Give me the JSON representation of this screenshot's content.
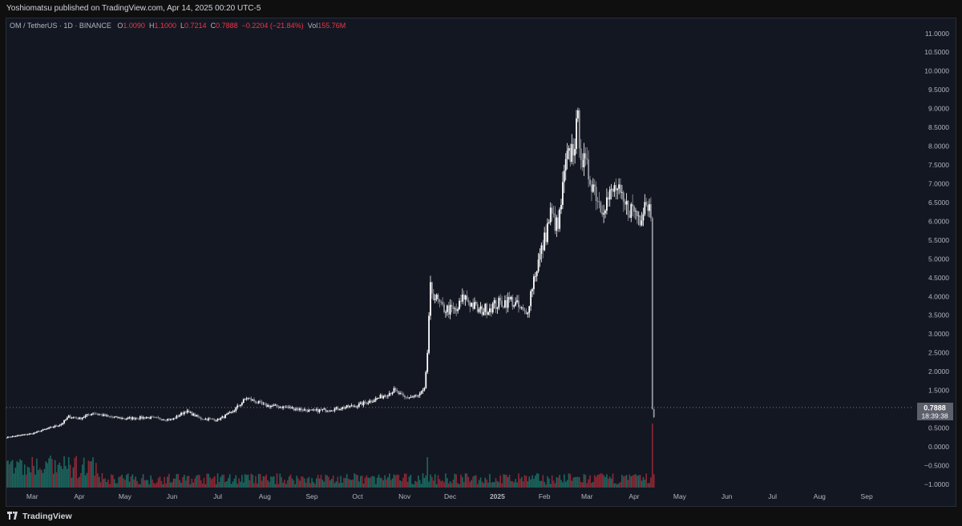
{
  "header": {
    "publish_line": "Yoshiomatsu published on TradingView.com, Apr 14, 2025 00:20 UTC-5"
  },
  "legend": {
    "symbol": "OM / TetherUS · 1D · BINANCE",
    "o_label": "O",
    "o_value": "1.0090",
    "h_label": "H",
    "h_value": "1.1000",
    "l_label": "L",
    "l_value": "0.7214",
    "c_label": "C",
    "c_value": "0.7888",
    "change": "−0.2204 (−21.84%)",
    "vol_label": "Vol",
    "vol_value": "155.76M"
  },
  "price_badge": {
    "price": "0.7888",
    "countdown": "18:39:38"
  },
  "footer": {
    "brand": "TradingView"
  },
  "colors": {
    "up": "#ffffff",
    "down": "#9598a1",
    "vol_up": "#22ab94",
    "vol_down": "#f23645",
    "bg": "#131722",
    "accent_red": "#f23645"
  },
  "chart_data": {
    "type": "candlestick",
    "symbol": "OM / TetherUS",
    "interval": "1D",
    "exchange": "BINANCE",
    "y_ticks": [
      "11.0000",
      "10.5000",
      "10.0000",
      "9.5000",
      "9.0000",
      "8.5000",
      "8.0000",
      "7.5000",
      "7.0000",
      "6.5000",
      "6.0000",
      "5.5000",
      "5.0000",
      "4.5000",
      "4.0000",
      "3.5000",
      "3.0000",
      "2.5000",
      "2.0000",
      "1.5000",
      "1.0000",
      "0.5000",
      "0.0000",
      "−0.5000",
      "−1.0000"
    ],
    "ylim": [
      -1.3,
      11.4
    ],
    "x_ticks": [
      "Mar",
      "Apr",
      "May",
      "Jun",
      "Jul",
      "Aug",
      "Sep",
      "Oct",
      "Nov",
      "Dec",
      "2025",
      "Feb",
      "Mar",
      "Apr",
      "May",
      "Jun",
      "Jul",
      "Aug",
      "Sep"
    ],
    "x_range": [
      "2024-02-13",
      "2025-10-01"
    ],
    "last_price": 0.7888,
    "approx_close_path": [
      [
        "2024-02-13",
        0.25
      ],
      [
        "2024-03-01",
        0.35
      ],
      [
        "2024-03-20",
        0.6
      ],
      [
        "2024-03-25",
        0.8
      ],
      [
        "2024-04-01",
        0.75
      ],
      [
        "2024-04-10",
        0.9
      ],
      [
        "2024-04-20",
        0.8
      ],
      [
        "2024-05-01",
        0.75
      ],
      [
        "2024-05-15",
        0.78
      ],
      [
        "2024-06-01",
        0.72
      ],
      [
        "2024-06-10",
        0.95
      ],
      [
        "2024-06-20",
        0.75
      ],
      [
        "2024-07-01",
        0.72
      ],
      [
        "2024-07-10",
        0.9
      ],
      [
        "2024-07-20",
        1.3
      ],
      [
        "2024-08-01",
        1.1
      ],
      [
        "2024-08-15",
        1.05
      ],
      [
        "2024-09-01",
        0.95
      ],
      [
        "2024-09-15",
        1.0
      ],
      [
        "2024-10-01",
        1.1
      ],
      [
        "2024-10-15",
        1.3
      ],
      [
        "2024-10-25",
        1.5
      ],
      [
        "2024-11-01",
        1.3
      ],
      [
        "2024-11-10",
        1.35
      ],
      [
        "2024-11-14",
        1.5
      ],
      [
        "2024-11-16",
        2.5
      ],
      [
        "2024-11-18",
        4.2
      ],
      [
        "2024-11-25",
        3.7
      ],
      [
        "2024-12-05",
        3.6
      ],
      [
        "2024-12-10",
        4.0
      ],
      [
        "2024-12-20",
        3.6
      ],
      [
        "2025-01-01",
        3.8
      ],
      [
        "2025-01-10",
        3.9
      ],
      [
        "2025-01-20",
        3.5
      ],
      [
        "2025-01-25",
        4.5
      ],
      [
        "2025-02-01",
        5.5
      ],
      [
        "2025-02-05",
        6.2
      ],
      [
        "2025-02-10",
        5.8
      ],
      [
        "2025-02-15",
        7.5
      ],
      [
        "2025-02-20",
        8.0
      ],
      [
        "2025-02-23",
        8.6
      ],
      [
        "2025-02-26",
        7.6
      ],
      [
        "2025-03-05",
        7.0
      ],
      [
        "2025-03-10",
        6.4
      ],
      [
        "2025-03-15",
        6.6
      ],
      [
        "2025-03-20",
        6.9
      ],
      [
        "2025-03-25",
        6.4
      ],
      [
        "2025-04-01",
        6.3
      ],
      [
        "2025-04-05",
        6.1
      ],
      [
        "2025-04-08",
        6.6
      ],
      [
        "2025-04-12",
        6.3
      ],
      [
        "2025-04-13",
        1.0
      ],
      [
        "2025-04-14",
        0.7888
      ]
    ],
    "volume_spikes": [
      [
        "2024-03-25",
        "high"
      ],
      [
        "2024-11-16",
        "high"
      ],
      [
        "2025-04-13",
        "extreme"
      ]
    ]
  }
}
